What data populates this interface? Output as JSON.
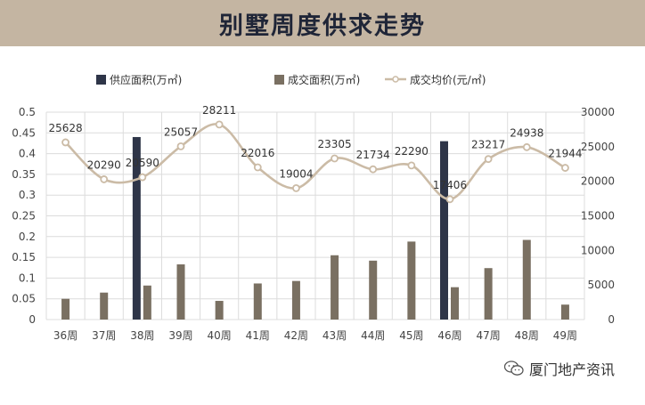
{
  "header": {
    "title": "别墅周度供求走势"
  },
  "footer": {
    "brand": "厦门地产资讯"
  },
  "colors": {
    "banner": "#c4b5a2",
    "supply": "#2e3548",
    "deal": "#7a7062",
    "price_line": "#cbbba6",
    "text": "#444444"
  },
  "chart_data": {
    "type": "bar",
    "categories": [
      "36周",
      "37周",
      "38周",
      "39周",
      "40周",
      "41周",
      "42周",
      "43周",
      "44周",
      "45周",
      "46周",
      "47周",
      "48周",
      "49周"
    ],
    "series": [
      {
        "name": "供应面积(万㎡)",
        "type": "bar",
        "axis": "left",
        "values": [
          0,
          0,
          0.44,
          0,
          0,
          0,
          0,
          0,
          0,
          0,
          0.43,
          0,
          0,
          0
        ]
      },
      {
        "name": "成交面积(万㎡)",
        "type": "bar",
        "axis": "left",
        "values": [
          0.05,
          0.065,
          0.082,
          0.133,
          0.045,
          0.087,
          0.093,
          0.155,
          0.142,
          0.188,
          0.078,
          0.124,
          0.192,
          0.036
        ]
      },
      {
        "name": "成交均价(元/㎡)",
        "type": "line",
        "axis": "right",
        "values": [
          25628,
          20290,
          20590,
          25057,
          28211,
          22016,
          19004,
          23305,
          21734,
          22290,
          17406,
          23217,
          24938,
          21944
        ],
        "labels": [
          "25628",
          "20290",
          "20590",
          "25057",
          "28211",
          "22016",
          "19004",
          "23305",
          "21734",
          "22290",
          "17406",
          "23217",
          "24938",
          "21944"
        ]
      }
    ],
    "y_left": {
      "ylim": [
        0,
        0.5
      ],
      "ticks": [
        "0",
        "0.05",
        "0.1",
        "0.15",
        "0.2",
        "0.25",
        "0.3",
        "0.35",
        "0.4",
        "0.45",
        "0.5"
      ]
    },
    "y_right": {
      "ylim": [
        0,
        30000
      ],
      "ticks": [
        "0",
        "5000",
        "10000",
        "15000",
        "20000",
        "25000",
        "30000"
      ]
    },
    "legend": {
      "position": "top"
    },
    "grid": true
  }
}
